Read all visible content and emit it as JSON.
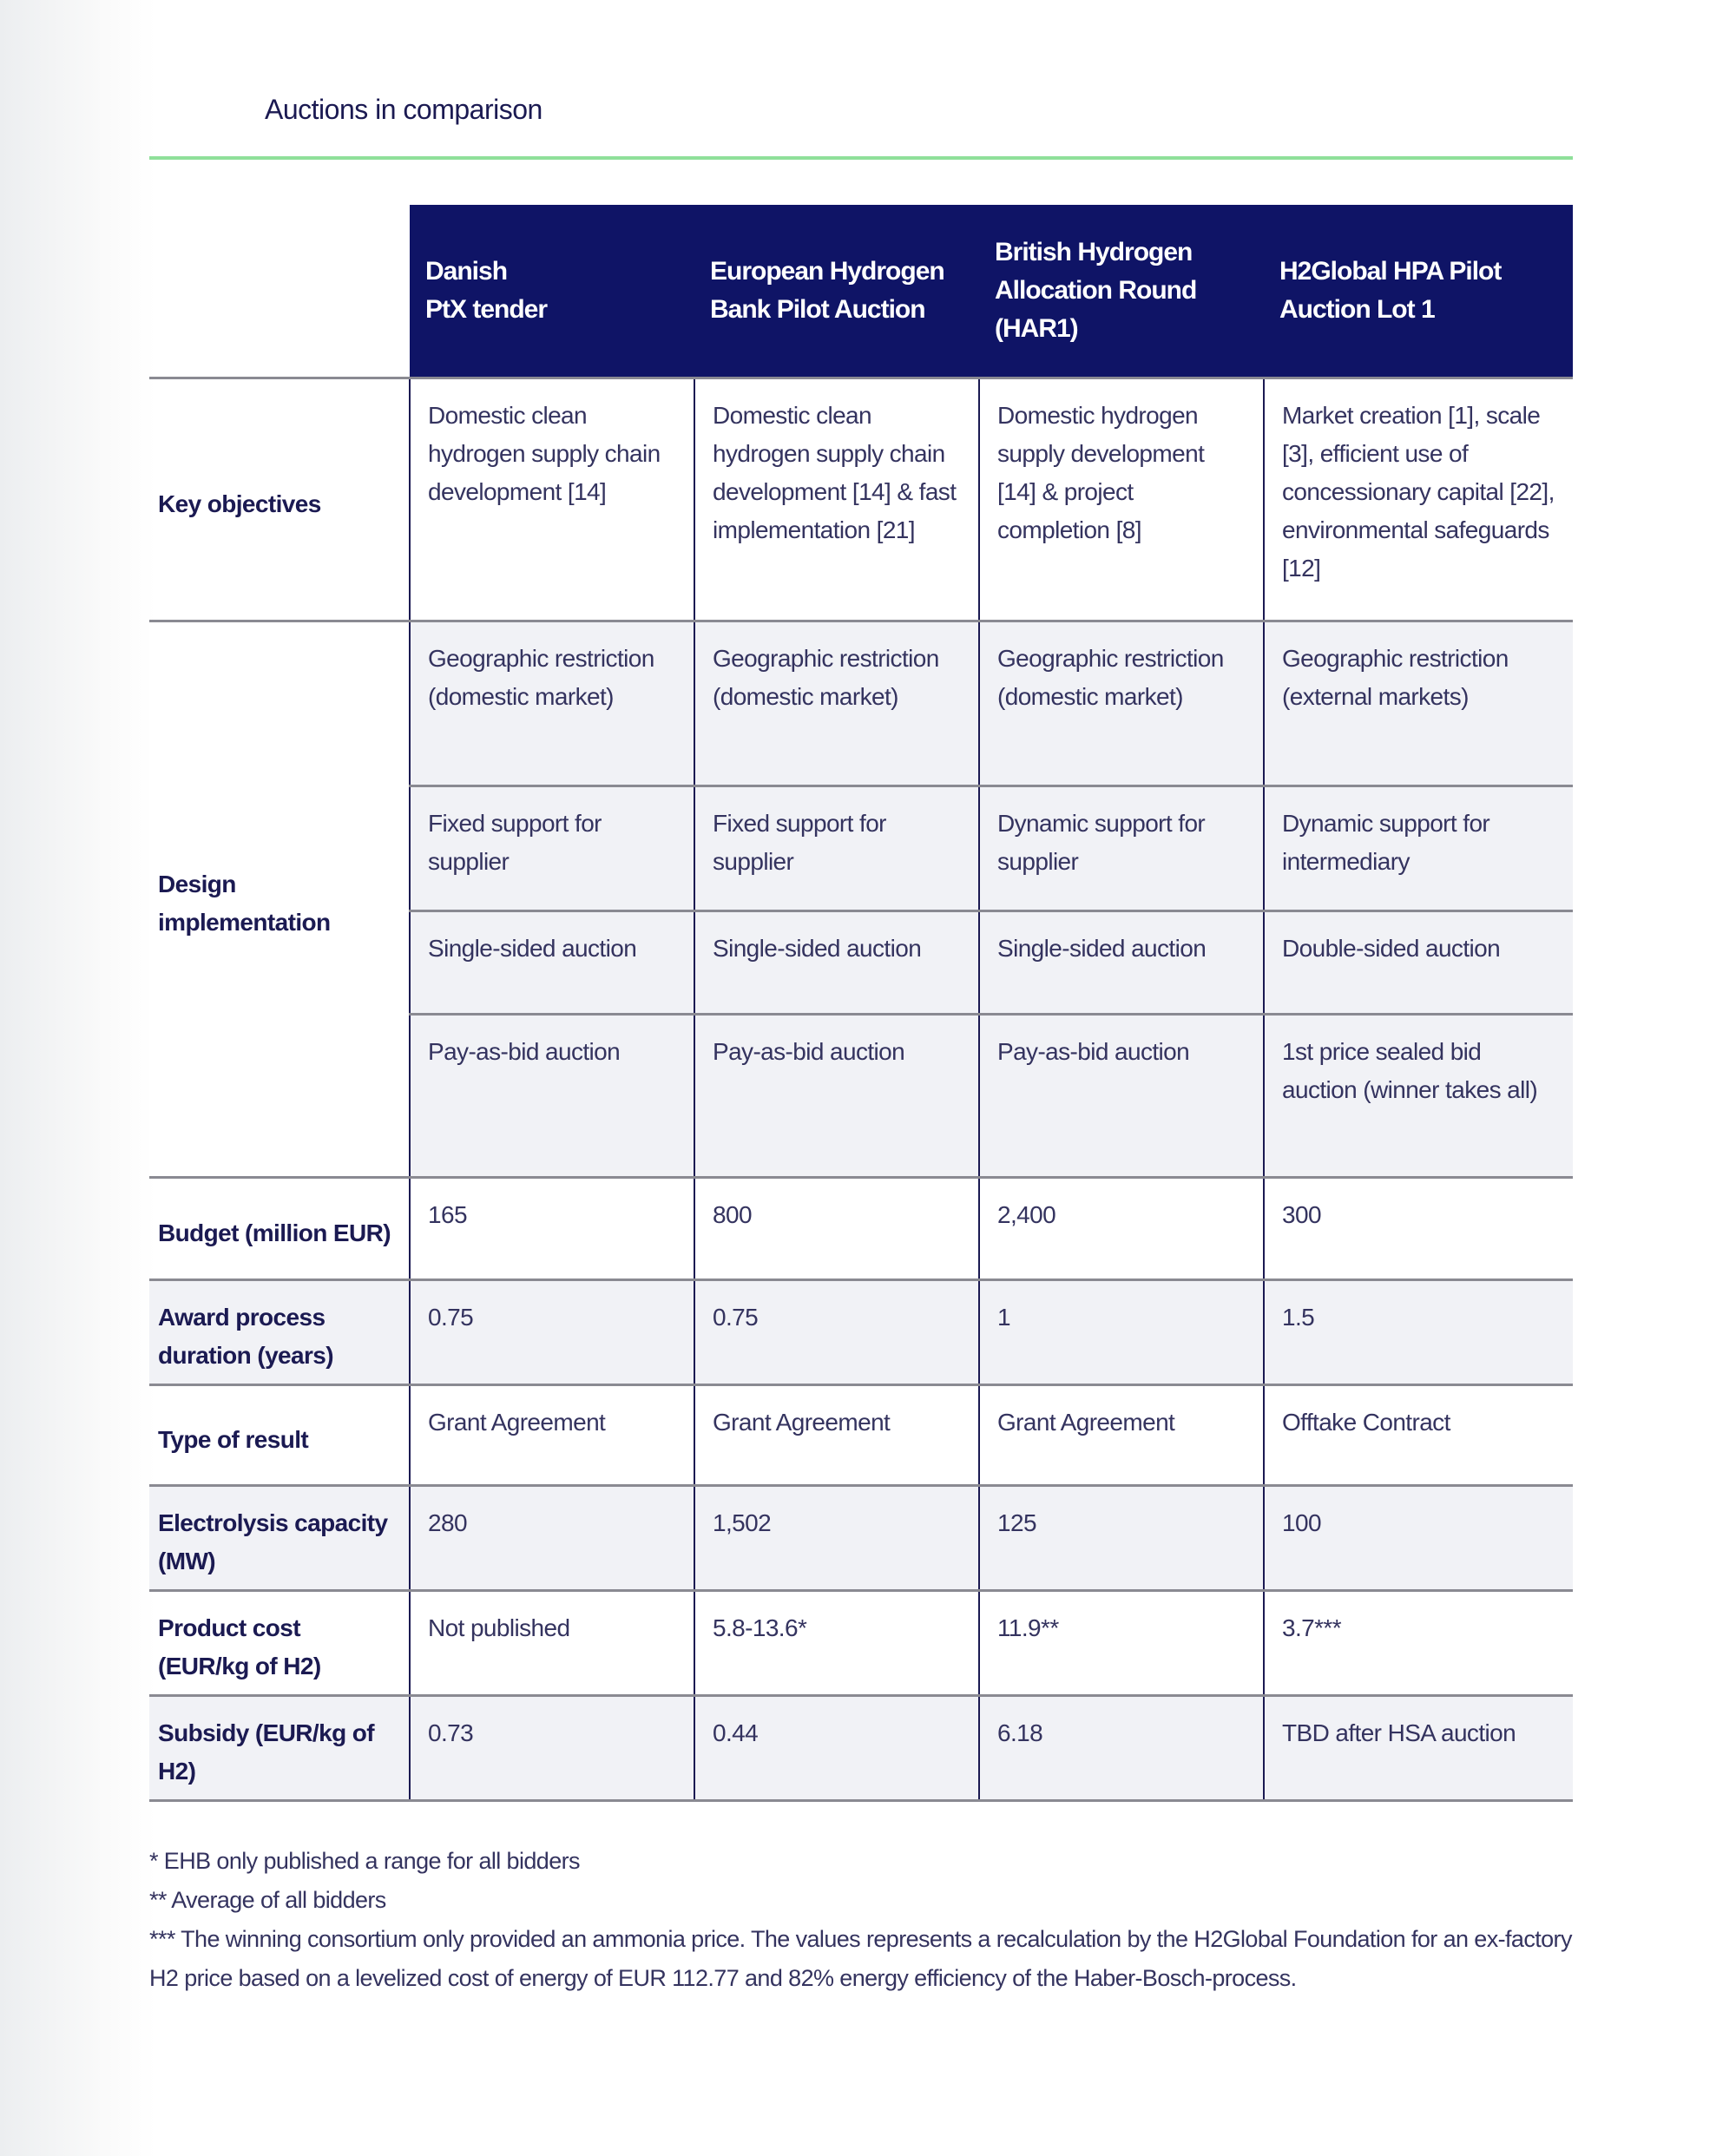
{
  "title": "Auctions in comparison",
  "columns": [
    "Danish\nPtX tender",
    "European Hydrogen Bank Pilot Auction",
    "British Hydrogen Allocation Round (HAR1)",
    "H2Global HPA Pilot Auction Lot 1"
  ],
  "rows": {
    "key_objectives": {
      "label": "Key objectives",
      "cells": [
        "Domestic clean hydrogen supply chain development [14]",
        "Domestic clean hydrogen supply chain development [14] & fast implementation [21]",
        "Domestic hydrogen supply development [14] & project completion [8]",
        "Market creation [1], scale [3], efficient use of concessionary capital [22], environmental safeguards [12]"
      ]
    },
    "design": {
      "label": "Design implementation",
      "sub": [
        [
          "Geographic restriction (domestic market)",
          "Geographic restriction (domestic market)",
          "Geographic restriction (domestic market)",
          "Geographic restriction (external markets)"
        ],
        [
          "Fixed support for supplier",
          "Fixed support for supplier",
          "Dynamic support for supplier",
          "Dynamic support for intermediary"
        ],
        [
          "Single-sided auction",
          "Single-sided auction",
          "Single-sided auction",
          "Double-sided auction"
        ],
        [
          "Pay-as-bid auction",
          "Pay-as-bid auction",
          "Pay-as-bid auction",
          "1st price sealed bid auction (winner takes all)"
        ]
      ]
    },
    "budget": {
      "label": "Budget (million EUR)",
      "cells": [
        "165",
        "800",
        "2,400",
        "300"
      ]
    },
    "award": {
      "label": "Award process duration (years)",
      "cells": [
        "0.75",
        "0.75",
        "1",
        "1.5"
      ]
    },
    "result": {
      "label": "Type of result",
      "cells": [
        "Grant Agreement",
        "Grant Agreement",
        "Grant Agreement",
        "Offtake Contract"
      ]
    },
    "electrolysis": {
      "label": "Electrolysis capacity (MW)",
      "cells": [
        "280",
        "1,502",
        "125",
        "100"
      ]
    },
    "product_cost": {
      "label": "Product cost (EUR/kg of H2)",
      "cells": [
        "Not published",
        "5.8-13.6*",
        "11.9**",
        "3.7***"
      ]
    },
    "subsidy": {
      "label": "Subsidy (EUR/kg of H2)",
      "cells": [
        "0.73",
        "0.44",
        "6.18",
        "TBD after HSA auction"
      ]
    }
  },
  "footnotes": [
    "* EHB only published a range for all bidders",
    "** Average of all bidders",
    "*** The winning consortium only provided an ammonia price. The values represents a recalculation by the H2Global Foundation for an ex-factory H2 price based on a levelized cost of energy of EUR 112.77 and 82% energy efficiency of the Haber-Bosch-process."
  ],
  "colors": {
    "header_bg": "#0f1466",
    "accent_rule": "#8fe09a",
    "text": "#1b1a52"
  }
}
